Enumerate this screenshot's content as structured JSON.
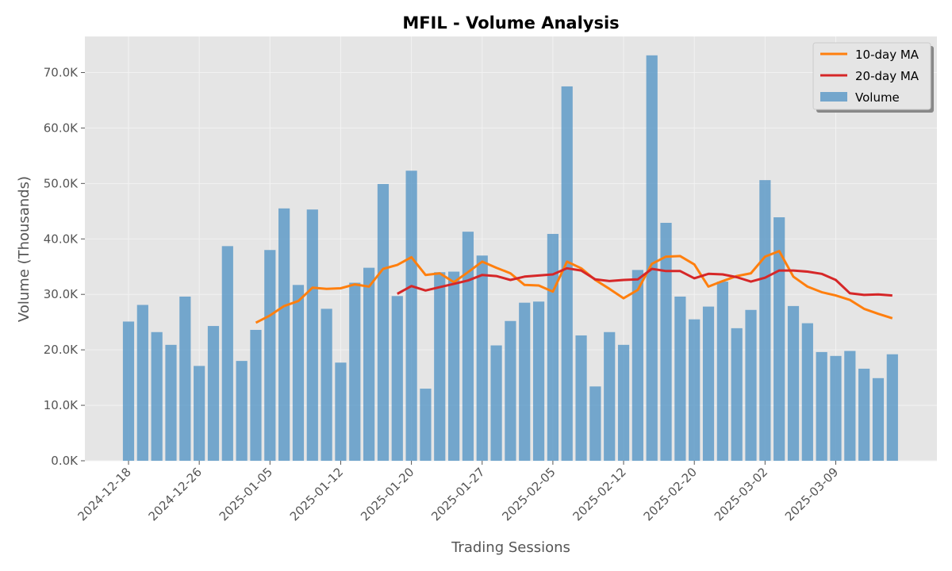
{
  "chart_data": {
    "type": "bar",
    "title": "MFIL - Volume Analysis",
    "xlabel": "Trading Sessions",
    "ylabel": "Volume (Thousands)",
    "ylim": [
      0,
      76500
    ],
    "y_ticks": [
      "0.0K",
      "10.0K",
      "20.0K",
      "30.0K",
      "40.0K",
      "50.0K",
      "60.0K",
      "70.0K"
    ],
    "x_ticks": [
      {
        "index": 0,
        "label": "2024-12-18"
      },
      {
        "index": 5,
        "label": "2024-12-26"
      },
      {
        "index": 10,
        "label": "2025-01-05"
      },
      {
        "index": 15,
        "label": "2025-01-12"
      },
      {
        "index": 20,
        "label": "2025-01-20"
      },
      {
        "index": 25,
        "label": "2025-01-27"
      },
      {
        "index": 30,
        "label": "2025-02-05"
      },
      {
        "index": 35,
        "label": "2025-02-12"
      },
      {
        "index": 40,
        "label": "2025-02-20"
      },
      {
        "index": 45,
        "label": "2025-03-02"
      },
      {
        "index": 50,
        "label": "2025-03-09"
      }
    ],
    "grid": true,
    "legend_position": "top-right",
    "series": [
      {
        "name": "Volume",
        "type": "bar",
        "color": "#5f9bc8",
        "values": [
          25100,
          28100,
          23200,
          20900,
          29600,
          17100,
          24300,
          38700,
          18000,
          23600,
          38000,
          45500,
          31700,
          45300,
          27400,
          17700,
          32100,
          34800,
          49900,
          29700,
          52300,
          13000,
          34000,
          34100,
          41300,
          37000,
          20800,
          25200,
          28500,
          28700,
          40900,
          67500,
          22600,
          13400,
          23200,
          20900,
          34400,
          73100,
          42900,
          29600,
          25500,
          27800,
          32300,
          23900,
          27200,
          50600,
          43900,
          27900,
          24800,
          19600,
          18900,
          19800,
          16600,
          14900,
          19200
        ]
      },
      {
        "name": "10-day MA",
        "type": "line",
        "color": "#ff7f0e",
        "values": [
          null,
          null,
          null,
          null,
          null,
          null,
          null,
          null,
          null,
          24900,
          26200,
          27900,
          28800,
          31200,
          31000,
          31100,
          31800,
          31400,
          34600,
          35300,
          36700,
          33500,
          33800,
          32200,
          34000,
          35900,
          34800,
          33800,
          31700,
          31600,
          30500,
          35900,
          34700,
          32600,
          31000,
          29300,
          30800,
          35500,
          36800,
          36900,
          35400,
          31400,
          32400,
          33300,
          33800,
          36800,
          37800,
          33200,
          31400,
          30400,
          29800,
          29000,
          27400,
          26500,
          25700
        ]
      },
      {
        "name": "20-day MA",
        "type": "line",
        "color": "#d62728",
        "values": [
          null,
          null,
          null,
          null,
          null,
          null,
          null,
          null,
          null,
          null,
          null,
          null,
          null,
          null,
          null,
          null,
          null,
          null,
          null,
          30100,
          31500,
          30700,
          31300,
          31900,
          32500,
          33500,
          33300,
          32600,
          33200,
          33400,
          33600,
          34700,
          34300,
          32700,
          32400,
          32600,
          32700,
          34600,
          34200,
          34200,
          32900,
          33700,
          33600,
          33100,
          32300,
          33000,
          34300,
          34300,
          34100,
          33700,
          32600,
          30200,
          29900,
          30000,
          29800
        ]
      }
    ]
  }
}
